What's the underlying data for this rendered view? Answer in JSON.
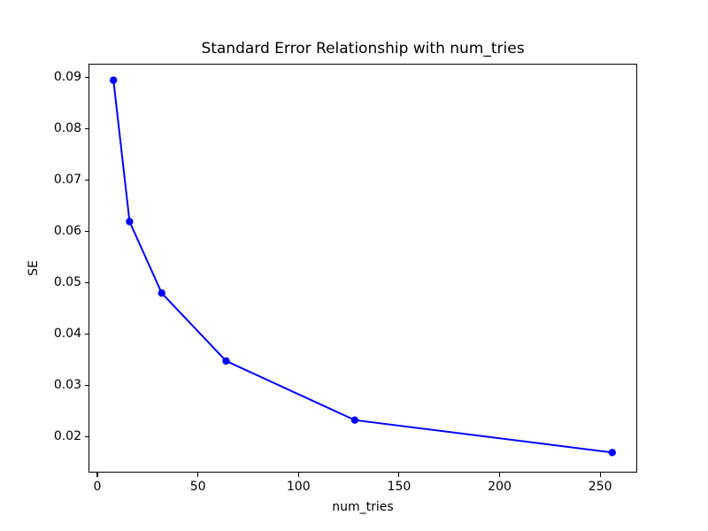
{
  "chart_data": {
    "type": "line",
    "title": "Standard Error Relationship with num_tries",
    "xlabel": "num_tries",
    "ylabel": "SE",
    "x": [
      8,
      16,
      32,
      64,
      128,
      256
    ],
    "y": [
      0.0894,
      0.0619,
      0.048,
      0.0348,
      0.0233,
      0.017
    ],
    "x_ticks": [
      0,
      50,
      100,
      150,
      200,
      250
    ],
    "y_ticks": [
      0.02,
      0.03,
      0.04,
      0.05,
      0.06,
      0.07,
      0.08,
      0.09
    ],
    "xlim": [
      -4.4,
      268.4
    ],
    "ylim": [
      0.0131,
      0.0926
    ],
    "grid": false,
    "legend_position": "none",
    "line_color": "#0000FF",
    "marker": "circle",
    "marker_color": "#0000FF",
    "text_color": "#000000",
    "background_color": "#FFFFFF"
  }
}
